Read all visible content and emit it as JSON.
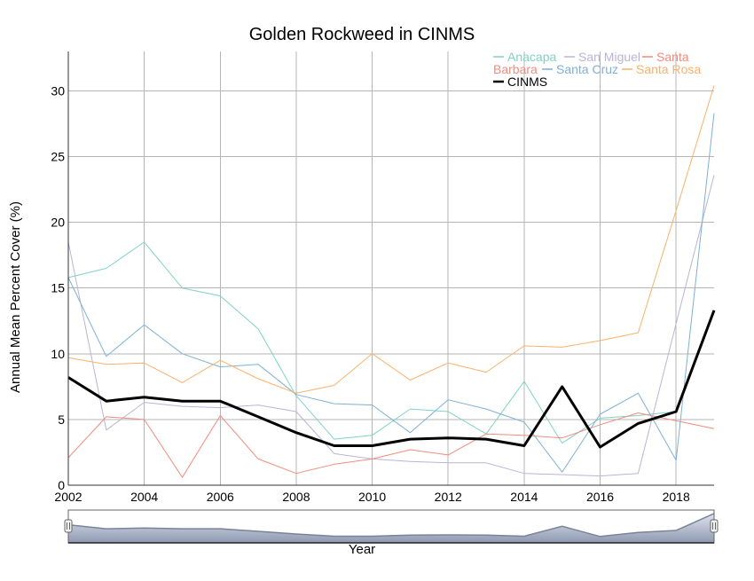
{
  "chart_data": {
    "type": "line",
    "title": "Golden Rockweed in CINMS",
    "xlabel": "Year",
    "ylabel": "Annual Mean Percent Cover (%)",
    "xlim": [
      2002,
      2019
    ],
    "ylim": [
      0,
      33
    ],
    "x_ticks": [
      2002,
      2004,
      2006,
      2008,
      2010,
      2012,
      2014,
      2016,
      2018
    ],
    "y_ticks": [
      0,
      5,
      10,
      15,
      20,
      25,
      30
    ],
    "grid": true,
    "legend_position": "top-right",
    "x": [
      2002,
      2003,
      2004,
      2005,
      2006,
      2007,
      2008,
      2009,
      2010,
      2011,
      2012,
      2013,
      2014,
      2015,
      2016,
      2017,
      2018,
      2019
    ],
    "series": [
      {
        "name": "Anacapa",
        "color": "#7fd3c0",
        "width": 1,
        "values": [
          15.8,
          16.5,
          18.5,
          15.0,
          14.4,
          11.9,
          6.8,
          3.5,
          3.8,
          5.8,
          5.6,
          3.9,
          7.9,
          3.2,
          5.1,
          5.3,
          5.6,
          null
        ]
      },
      {
        "name": "San Miguel",
        "color": "#bbb3d5",
        "width": 1,
        "values": [
          18.5,
          4.2,
          6.3,
          6.0,
          5.9,
          6.1,
          5.6,
          2.4,
          2.0,
          1.8,
          1.7,
          1.7,
          0.9,
          0.8,
          0.7,
          0.9,
          12.3,
          23.6
        ]
      },
      {
        "name": "Santa Barbara",
        "color": "#f48a7c",
        "width": 1,
        "values": [
          2.1,
          5.2,
          5.0,
          0.6,
          5.3,
          2.0,
          0.9,
          1.6,
          2.0,
          2.7,
          2.3,
          3.9,
          3.8,
          3.6,
          4.6,
          5.5,
          4.9,
          4.3
        ]
      },
      {
        "name": "Santa Cruz",
        "color": "#7eb1d5",
        "width": 1,
        "values": [
          15.8,
          9.8,
          12.2,
          10.0,
          9.0,
          9.2,
          6.9,
          6.2,
          6.1,
          4.0,
          6.5,
          5.8,
          4.8,
          1.0,
          5.4,
          7.0,
          1.9,
          28.3
        ]
      },
      {
        "name": "Santa Rosa",
        "color": "#fbb16a",
        "width": 1,
        "values": [
          9.7,
          9.2,
          9.3,
          7.8,
          9.5,
          8.1,
          7.0,
          7.6,
          10.0,
          8.0,
          9.3,
          8.6,
          10.6,
          10.5,
          11.0,
          11.6,
          20.9,
          30.4
        ]
      },
      {
        "name": "CINMS",
        "color": "#000000",
        "width": 3,
        "values": [
          8.2,
          6.4,
          6.7,
          6.4,
          6.4,
          5.2,
          4.0,
          3.0,
          3.0,
          3.5,
          3.6,
          3.5,
          3.0,
          7.5,
          2.9,
          4.7,
          5.6,
          13.3
        ]
      }
    ],
    "navigator_series": "CINMS"
  }
}
